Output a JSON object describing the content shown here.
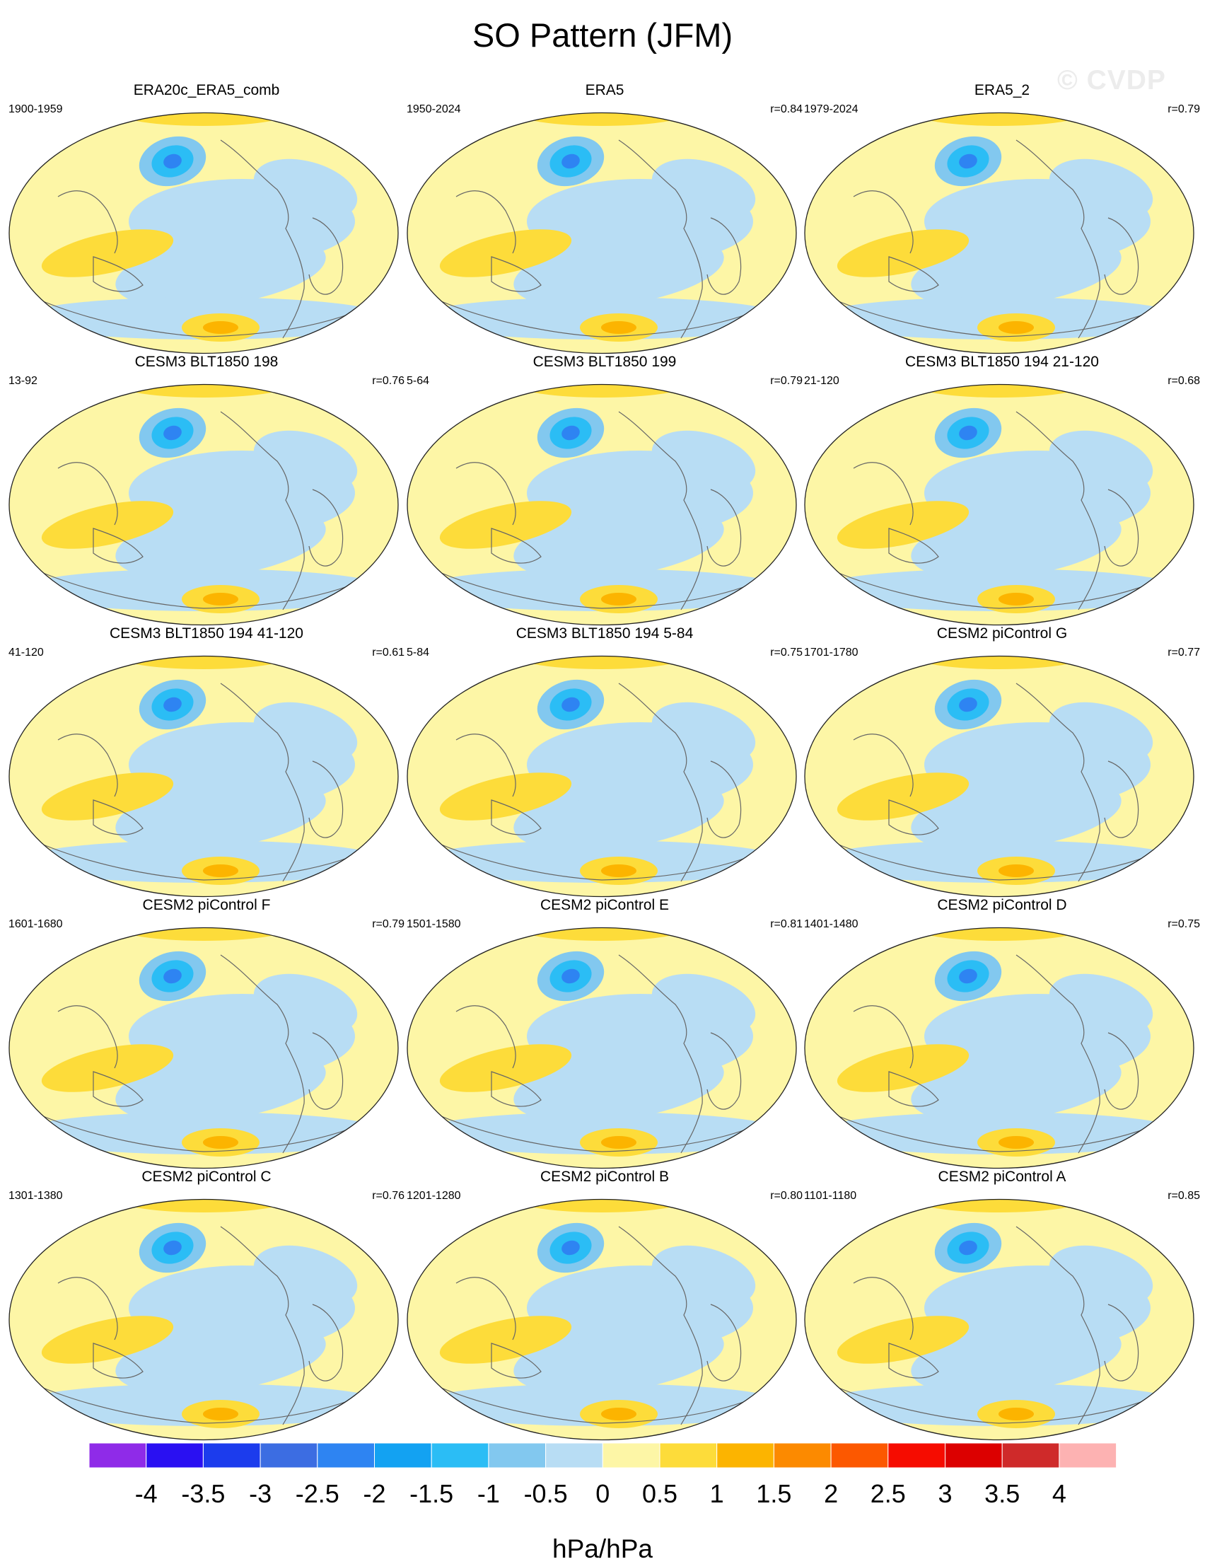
{
  "title": "SO Pattern (JFM)",
  "watermark": "© CVDP",
  "chart_data": {
    "type": "heatmap",
    "title": "SO Pattern (JFM)",
    "units": "hPa/hPa",
    "projection": "global map",
    "colorbar": {
      "tick_labels": [
        "-4",
        "-3.5",
        "-3",
        "-2.5",
        "-2",
        "-1.5",
        "-1",
        "-0.5",
        "0",
        "0.5",
        "1",
        "1.5",
        "2",
        "2.5",
        "3",
        "3.5",
        "4"
      ],
      "colors": [
        "#8f2be8",
        "#2a10f2",
        "#1c3ced",
        "#3c6de2",
        "#2e84f2",
        "#13a2f2",
        "#2bbdf5",
        "#82c8ef",
        "#b8ddf4",
        "#fdf6a6",
        "#fddc3a",
        "#fcb400",
        "#fc8a00",
        "#fc5800",
        "#f60c00",
        "#dc0000",
        "#cf2a2a",
        "#fdb2b2"
      ]
    },
    "panels": [
      {
        "name": "ERA20c_ERA5_comb",
        "years": "1900-1959",
        "r": ""
      },
      {
        "name": "ERA5",
        "years": "1950-2024",
        "r": "r=0.84"
      },
      {
        "name": "ERA5_2",
        "years": "1979-2024",
        "r": "r=0.79"
      },
      {
        "name": "CESM3 BLT1850 198",
        "years": "13-92",
        "r": "r=0.76"
      },
      {
        "name": "CESM3 BLT1850 199",
        "years": "5-64",
        "r": "r=0.79"
      },
      {
        "name": "CESM3 BLT1850 194 21-120",
        "years": "21-120",
        "r": "r=0.68"
      },
      {
        "name": "CESM3 BLT1850 194 41-120",
        "years": "41-120",
        "r": "r=0.61"
      },
      {
        "name": "CESM3 BLT1850 194 5-84",
        "years": "5-84",
        "r": "r=0.75"
      },
      {
        "name": "CESM2 piControl G",
        "years": "1701-1780",
        "r": "r=0.77"
      },
      {
        "name": "CESM2 piControl F",
        "years": "1601-1680",
        "r": "r=0.79"
      },
      {
        "name": "CESM2 piControl E",
        "years": "1501-1580",
        "r": "r=0.81"
      },
      {
        "name": "CESM2 piControl D",
        "years": "1401-1480",
        "r": "r=0.75"
      },
      {
        "name": "CESM2 piControl C",
        "years": "1301-1380",
        "r": "r=0.76"
      },
      {
        "name": "CESM2 piControl B",
        "years": "1201-1280",
        "r": "r=0.80"
      },
      {
        "name": "CESM2 piControl A",
        "years": "1101-1180",
        "r": "r=0.85"
      }
    ]
  }
}
